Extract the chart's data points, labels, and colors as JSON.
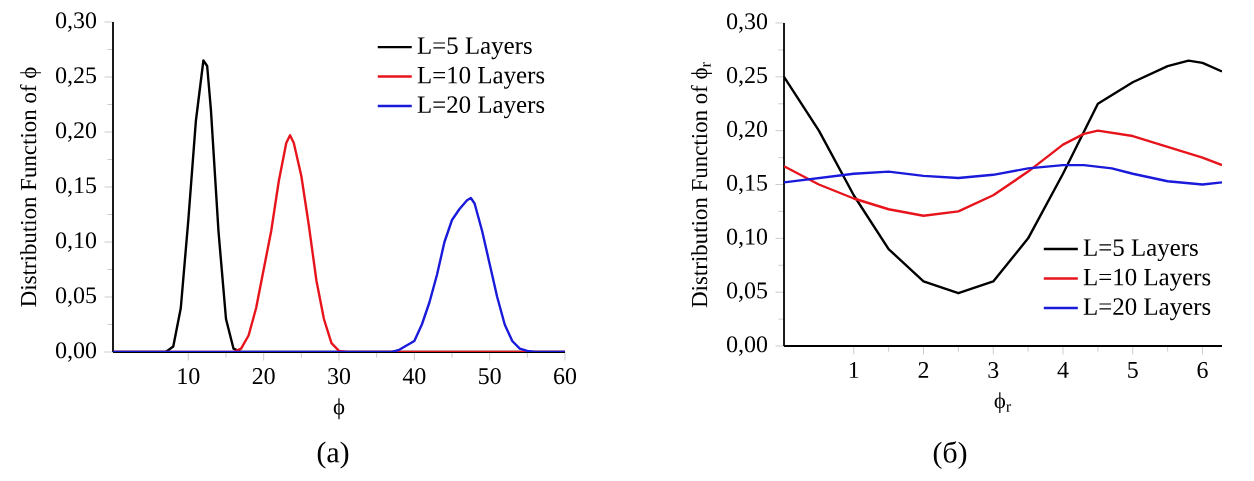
{
  "chart_data": [
    {
      "type": "line",
      "xlabel": "ϕ",
      "ylabel": "Distribution Function of ϕ",
      "annotations": [
        "(а)"
      ],
      "xlim": [
        0,
        60
      ],
      "ylim": [
        0,
        0.3
      ],
      "xticks": [
        10,
        20,
        30,
        40,
        50,
        60
      ],
      "yticks": [
        {
          "value": 0,
          "label": "0,00"
        },
        {
          "value": 0.05,
          "label": "0,05"
        },
        {
          "value": 0.1,
          "label": "0,10"
        },
        {
          "value": 0.15,
          "label": "0,15"
        },
        {
          "value": 0.2,
          "label": "0,20"
        },
        {
          "value": 0.25,
          "label": "0,25"
        },
        {
          "value": 0.3,
          "label": "0,30"
        }
      ],
      "legend": "top right",
      "grid": false,
      "marker": "none",
      "line_style": "solid",
      "series": [
        {
          "name": "L=5 Layers",
          "color": "#000000",
          "x": [
            0,
            7,
            8,
            9,
            10,
            11,
            12,
            12.5,
            13,
            14,
            15,
            16,
            17,
            60
          ],
          "values": [
            0,
            0,
            0.005,
            0.04,
            0.12,
            0.21,
            0.265,
            0.26,
            0.22,
            0.11,
            0.03,
            0.003,
            0,
            0
          ]
        },
        {
          "name": "L=10 Layers",
          "color": "#e8141c",
          "x": [
            0,
            16,
            17,
            18,
            19,
            20,
            21,
            22,
            23,
            23.5,
            24,
            25,
            26,
            27,
            28,
            29,
            30,
            31,
            60
          ],
          "values": [
            0,
            0,
            0.003,
            0.015,
            0.04,
            0.075,
            0.11,
            0.155,
            0.19,
            0.197,
            0.19,
            0.16,
            0.115,
            0.065,
            0.03,
            0.008,
            0.001,
            0,
            0
          ]
        },
        {
          "name": "L=20 Layers",
          "color": "#1a1adb",
          "x": [
            0,
            37,
            38,
            40,
            41,
            42,
            43,
            44,
            45,
            46,
            47,
            47.5,
            48,
            49,
            50,
            51,
            52,
            53,
            54,
            55,
            56,
            60
          ],
          "values": [
            0,
            0,
            0.002,
            0.01,
            0.025,
            0.045,
            0.07,
            0.1,
            0.12,
            0.13,
            0.138,
            0.14,
            0.135,
            0.11,
            0.08,
            0.05,
            0.025,
            0.01,
            0.003,
            0.001,
            0,
            0
          ]
        }
      ]
    },
    {
      "type": "line",
      "xlabel": "ϕ$_{r}$",
      "ylabel": "Distribution Function of ϕ$_{r}$",
      "annotations": [
        "(б)"
      ],
      "xlim": [
        0,
        6.28
      ],
      "ylim": [
        0,
        0.3
      ],
      "xticks": [
        1,
        2,
        3,
        4,
        5,
        6
      ],
      "yticks": [
        {
          "value": 0,
          "label": "0,00"
        },
        {
          "value": 0.05,
          "label": "0,05"
        },
        {
          "value": 0.1,
          "label": "0,10"
        },
        {
          "value": 0.15,
          "label": "0,15"
        },
        {
          "value": 0.2,
          "label": "0,20"
        },
        {
          "value": 0.25,
          "label": "0,25"
        },
        {
          "value": 0.3,
          "label": "0,30"
        }
      ],
      "legend": "bottom right",
      "grid": false,
      "marker": "none",
      "line_style": "solid",
      "series": [
        {
          "name": "L=5 Layers",
          "color": "#000000",
          "x": [
            0,
            0.5,
            1,
            1.5,
            2,
            2.5,
            3,
            3.5,
            4,
            4.5,
            5,
            5.5,
            5.8,
            6,
            6.28
          ],
          "values": [
            0.25,
            0.2,
            0.14,
            0.09,
            0.06,
            0.049,
            0.06,
            0.1,
            0.16,
            0.225,
            0.245,
            0.26,
            0.265,
            0.263,
            0.255
          ]
        },
        {
          "name": "L=10 Layers",
          "color": "#e8141c",
          "x": [
            0,
            0.5,
            1,
            1.5,
            2,
            2.5,
            3,
            3.5,
            4,
            4.3,
            4.5,
            5,
            5.5,
            6,
            6.28
          ],
          "values": [
            0.167,
            0.15,
            0.137,
            0.127,
            0.121,
            0.125,
            0.14,
            0.162,
            0.187,
            0.197,
            0.2,
            0.195,
            0.185,
            0.175,
            0.168
          ]
        },
        {
          "name": "L=20 Layers",
          "color": "#1a1adb",
          "x": [
            0,
            0.5,
            1,
            1.5,
            2,
            2.5,
            3,
            3.5,
            4,
            4.3,
            4.7,
            5,
            5.5,
            6,
            6.28
          ],
          "values": [
            0.152,
            0.156,
            0.16,
            0.162,
            0.158,
            0.156,
            0.159,
            0.165,
            0.168,
            0.168,
            0.165,
            0.16,
            0.153,
            0.15,
            0.152
          ]
        }
      ]
    }
  ]
}
